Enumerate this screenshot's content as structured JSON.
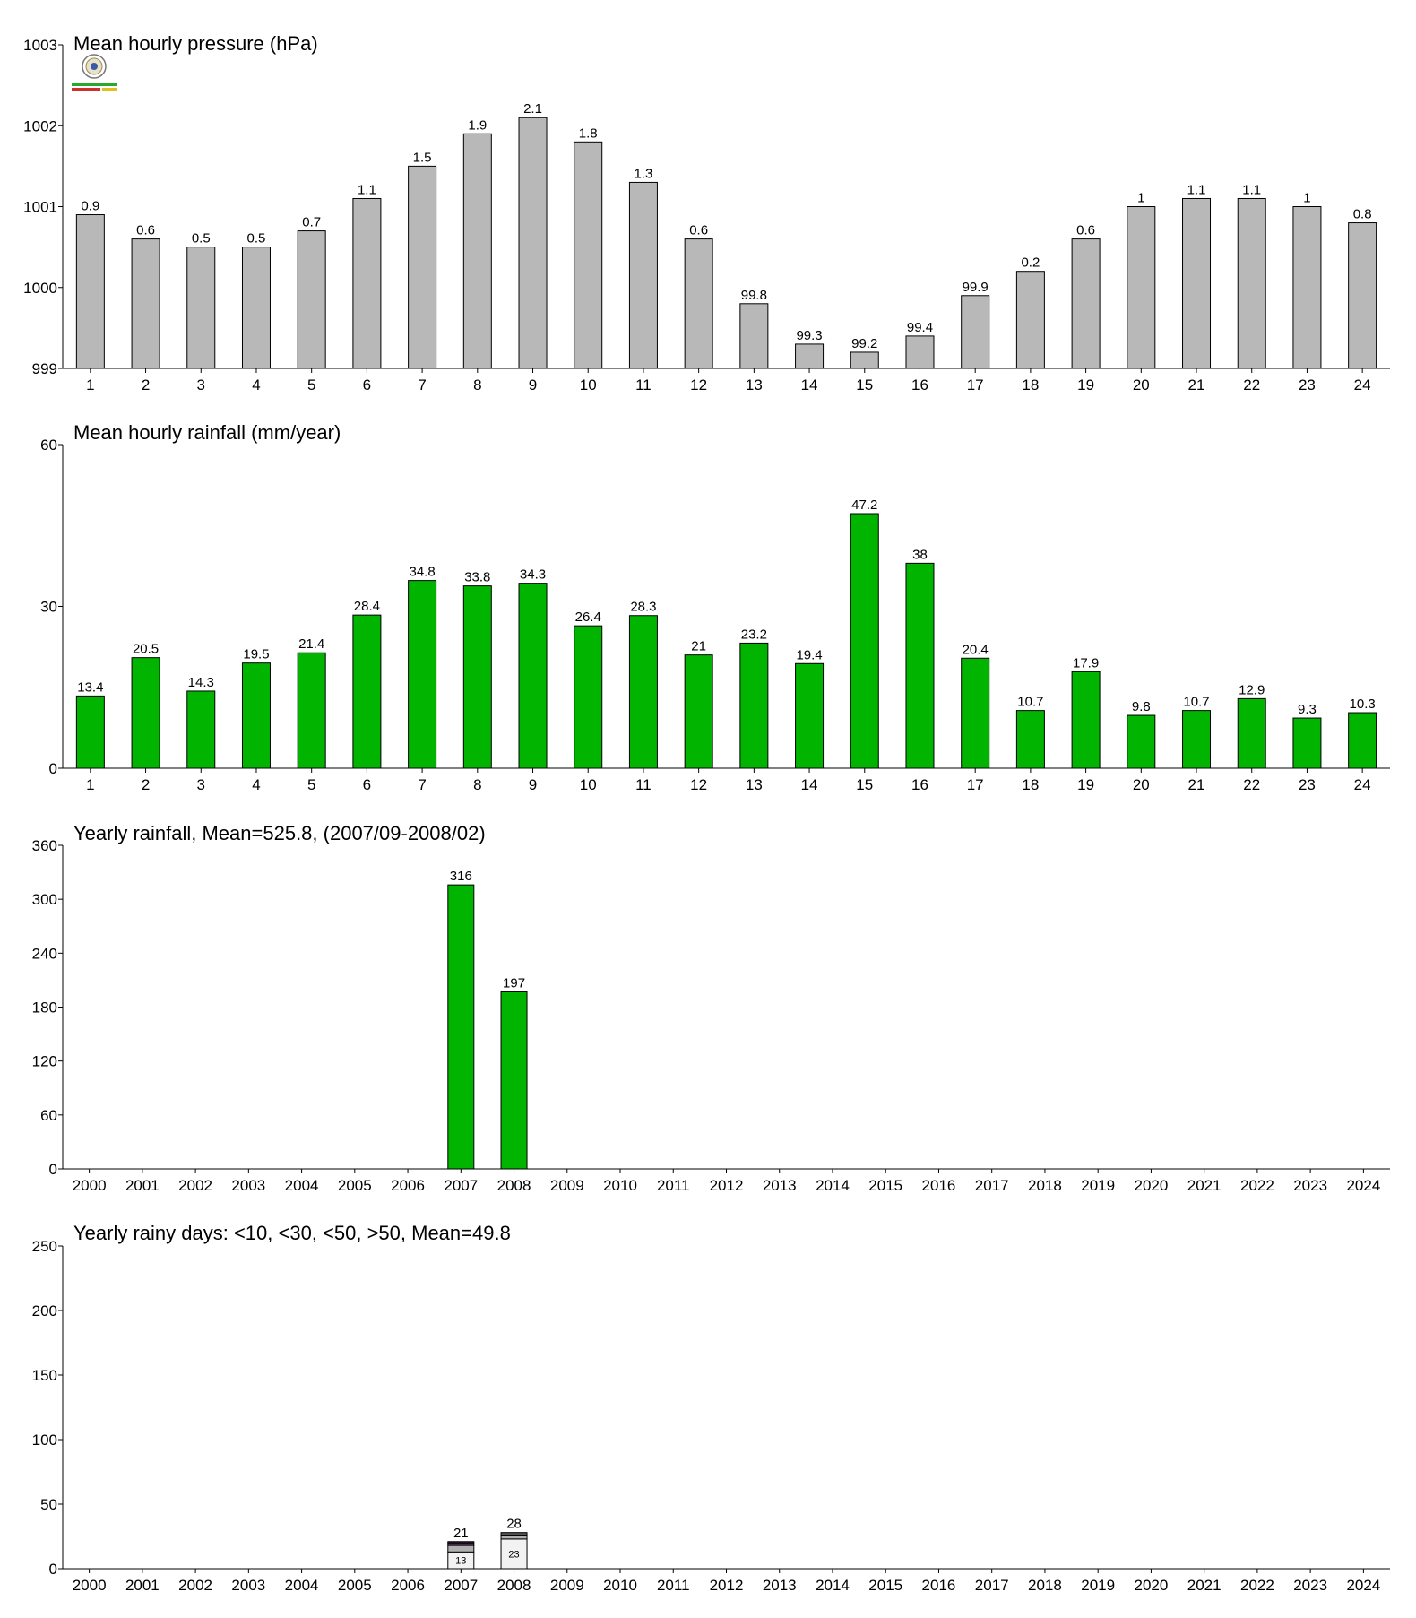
{
  "chart_data": [
    {
      "type": "bar",
      "title": "Mean hourly pressure (hPa)",
      "categories": [
        "1",
        "2",
        "3",
        "4",
        "5",
        "6",
        "7",
        "8",
        "9",
        "10",
        "11",
        "12",
        "13",
        "14",
        "15",
        "16",
        "17",
        "18",
        "19",
        "20",
        "21",
        "22",
        "23",
        "24"
      ],
      "values": [
        1000.9,
        1000.6,
        1000.5,
        1000.5,
        1000.7,
        1001.1,
        1001.5,
        1001.9,
        1002.1,
        1001.8,
        1001.3,
        1000.6,
        999.8,
        999.3,
        999.2,
        999.4,
        999.9,
        1000.2,
        1000.6,
        1001.0,
        1001.1,
        1001.1,
        1001.0,
        1000.8
      ],
      "data_labels": [
        "0.9",
        "0.6",
        "0.5",
        "0.5",
        "0.7",
        "1.1",
        "1.5",
        "1.9",
        "2.1",
        "1.8",
        "1.3",
        "0.6",
        "99.8",
        "99.3",
        "99.2",
        "99.4",
        "99.9",
        "0.2",
        "0.6",
        "1",
        "1.1",
        "1.1",
        "1",
        "0.8"
      ],
      "ylim": [
        999,
        1003
      ],
      "yticks": [
        "999",
        "1000",
        "1001",
        "1002",
        "1003"
      ],
      "bar_color": "#b8b8b8"
    },
    {
      "type": "bar",
      "title": "Mean hourly rainfall (mm/year)",
      "categories": [
        "1",
        "2",
        "3",
        "4",
        "5",
        "6",
        "7",
        "8",
        "9",
        "10",
        "11",
        "12",
        "13",
        "14",
        "15",
        "16",
        "17",
        "18",
        "19",
        "20",
        "21",
        "22",
        "23",
        "24"
      ],
      "values": [
        13.4,
        20.5,
        14.3,
        19.5,
        21.4,
        28.4,
        34.8,
        33.8,
        34.3,
        26.4,
        28.3,
        21,
        23.2,
        19.4,
        47.2,
        38,
        20.4,
        10.7,
        17.9,
        9.8,
        10.7,
        12.9,
        9.3,
        10.3
      ],
      "data_labels": [
        "13.4",
        "20.5",
        "14.3",
        "19.5",
        "21.4",
        "28.4",
        "34.8",
        "33.8",
        "34.3",
        "26.4",
        "28.3",
        "21",
        "23.2",
        "19.4",
        "47.2",
        "38",
        "20.4",
        "10.7",
        "17.9",
        "9.8",
        "10.7",
        "12.9",
        "9.3",
        "10.3"
      ],
      "ylim": [
        0,
        60
      ],
      "yticks": [
        "0",
        "30",
        "60"
      ],
      "bar_color": "#00b400"
    },
    {
      "type": "bar",
      "title": "Yearly rainfall, Mean=525.8, (2007/09-2008/02)",
      "categories": [
        "2000",
        "2001",
        "2002",
        "2003",
        "2004",
        "2005",
        "2006",
        "2007",
        "2008",
        "2009",
        "2010",
        "2011",
        "2012",
        "2013",
        "2014",
        "2015",
        "2016",
        "2017",
        "2018",
        "2019",
        "2020",
        "2021",
        "2022",
        "2023",
        "2024"
      ],
      "values": [
        null,
        null,
        null,
        null,
        null,
        null,
        null,
        316,
        197,
        null,
        null,
        null,
        null,
        null,
        null,
        null,
        null,
        null,
        null,
        null,
        null,
        null,
        null,
        null,
        null
      ],
      "data_labels": [
        "",
        "",
        "",
        "",
        "",
        "",
        "",
        "316",
        "197",
        "",
        "",
        "",
        "",
        "",
        "",
        "",
        "",
        "",
        "",
        "",
        "",
        "",
        "",
        "",
        ""
      ],
      "ylim": [
        0,
        360
      ],
      "yticks": [
        "0",
        "60",
        "120",
        "180",
        "240",
        "300",
        "360"
      ],
      "bar_color": "#00b400"
    },
    {
      "type": "stacked-bar",
      "title": "Yearly rainy days: <10, <30, <50, >50, Mean=49.8",
      "categories": [
        "2000",
        "2001",
        "2002",
        "2003",
        "2004",
        "2005",
        "2006",
        "2007",
        "2008",
        "2009",
        "2010",
        "2011",
        "2012",
        "2013",
        "2014",
        "2015",
        "2016",
        "2017",
        "2018",
        "2019",
        "2020",
        "2021",
        "2022",
        "2023",
        "2024"
      ],
      "stacks": [
        {
          "category": "2007",
          "total": 21,
          "total_label": "21",
          "segments": [
            {
              "value": 13,
              "label": "13",
              "color": "#f2f2f2"
            },
            {
              "value": 5,
              "label": "",
              "color": "#b0b0b0"
            },
            {
              "value": 2,
              "label": "",
              "color": "#7a3a90"
            },
            {
              "value": 1,
              "label": "",
              "color": "#333333"
            }
          ]
        },
        {
          "category": "2008",
          "total": 28,
          "total_label": "28",
          "segments": [
            {
              "value": 23,
              "label": "23",
              "color": "#f2f2f2"
            },
            {
              "value": 3,
              "label": "",
              "color": "#b0b0b0"
            },
            {
              "value": 2,
              "label": "",
              "color": "#555555"
            }
          ]
        }
      ],
      "ylim": [
        0,
        250
      ],
      "yticks": [
        "0",
        "50",
        "100",
        "150",
        "200",
        "250"
      ]
    }
  ]
}
